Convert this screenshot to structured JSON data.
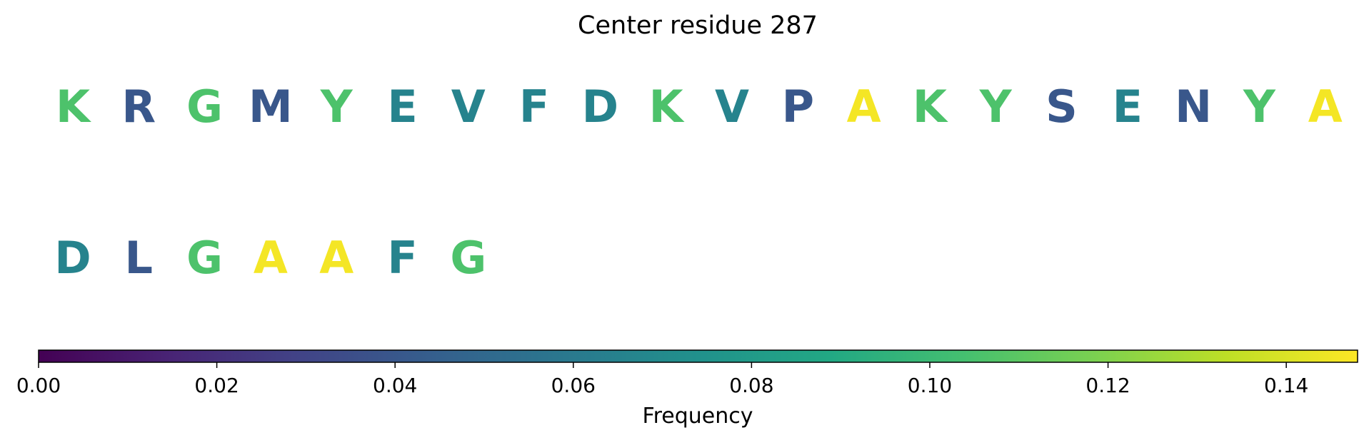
{
  "chart_data": {
    "type": "heatmap",
    "title": "Center residue 287",
    "colormap": "viridis",
    "residues": [
      {
        "letter": "K",
        "frequency": 0.106
      },
      {
        "letter": "R",
        "frequency": 0.04
      },
      {
        "letter": "G",
        "frequency": 0.106
      },
      {
        "letter": "M",
        "frequency": 0.04
      },
      {
        "letter": "Y",
        "frequency": 0.106
      },
      {
        "letter": "E",
        "frequency": 0.066
      },
      {
        "letter": "V",
        "frequency": 0.066
      },
      {
        "letter": "F",
        "frequency": 0.066
      },
      {
        "letter": "D",
        "frequency": 0.066
      },
      {
        "letter": "K",
        "frequency": 0.106
      },
      {
        "letter": "V",
        "frequency": 0.066
      },
      {
        "letter": "P",
        "frequency": 0.04
      },
      {
        "letter": "A",
        "frequency": 0.146
      },
      {
        "letter": "K",
        "frequency": 0.106
      },
      {
        "letter": "Y",
        "frequency": 0.106
      },
      {
        "letter": "S",
        "frequency": 0.04
      },
      {
        "letter": "E",
        "frequency": 0.066
      },
      {
        "letter": "N",
        "frequency": 0.04
      },
      {
        "letter": "Y",
        "frequency": 0.106
      },
      {
        "letter": "A",
        "frequency": 0.146
      },
      {
        "letter": "D",
        "frequency": 0.066
      },
      {
        "letter": "L",
        "frequency": 0.04
      },
      {
        "letter": "G",
        "frequency": 0.106
      },
      {
        "letter": "A",
        "frequency": 0.146
      },
      {
        "letter": "A",
        "frequency": 0.146
      },
      {
        "letter": "F",
        "frequency": 0.066
      },
      {
        "letter": "G",
        "frequency": 0.106
      }
    ],
    "colorbar": {
      "label": "Frequency",
      "range": [
        0,
        0.148
      ],
      "ticks": [
        0,
        0.02,
        0.04,
        0.06,
        0.08,
        0.1,
        0.12,
        0.14
      ],
      "tick_labels": [
        "0.00",
        "0.02",
        "0.04",
        "0.06",
        "0.08",
        "0.10",
        "0.12",
        "0.14"
      ]
    }
  }
}
